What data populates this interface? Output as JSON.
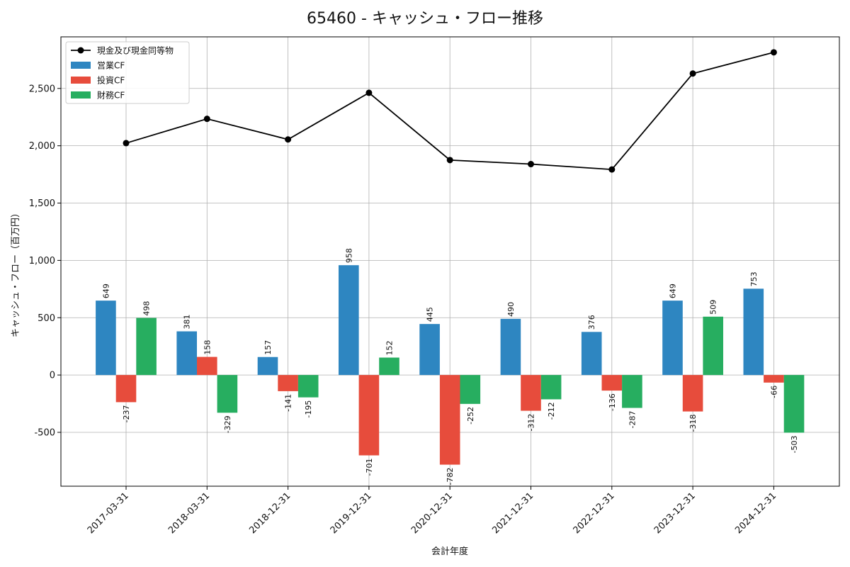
{
  "chart_data": {
    "type": "bar",
    "title": "65460 - キャッシュ・フロー推移",
    "xlabel": "会計年度",
    "ylabel": "キャッシュ・フロー（百万円）",
    "categories": [
      "2017-03-31",
      "2018-03-31",
      "2018-12-31",
      "2019-12-31",
      "2020-12-31",
      "2021-12-31",
      "2022-12-31",
      "2023-12-31",
      "2024-12-31"
    ],
    "ylim": [
      -970,
      2950
    ],
    "yticks": [
      -500,
      0,
      500,
      1000,
      1500,
      2000,
      2500
    ],
    "ytick_labels": [
      "-500",
      "0",
      "500",
      "1,000",
      "1,500",
      "2,000",
      "2,500"
    ],
    "grid": true,
    "legend_position": "top-left",
    "series": [
      {
        "name": "営業CF",
        "kind": "bar",
        "color": "#2e86c1",
        "values": [
          649,
          381,
          157,
          958,
          445,
          490,
          376,
          649,
          753
        ],
        "labels": [
          "649",
          "381",
          "157",
          "958",
          "445",
          "490",
          "376",
          "649",
          "753"
        ]
      },
      {
        "name": "投資CF",
        "kind": "bar",
        "color": "#e74c3c",
        "values": [
          -237,
          158,
          -141,
          -701,
          -782,
          -312,
          -136,
          -318,
          -66
        ],
        "labels": [
          "-237",
          "158",
          "-141",
          "-701",
          "-782",
          "-312",
          "-136",
          "-318",
          "-66"
        ]
      },
      {
        "name": "財務CF",
        "kind": "bar",
        "color": "#27ae60",
        "values": [
          498,
          -329,
          -195,
          152,
          -252,
          -212,
          -287,
          509,
          -503
        ],
        "labels": [
          "498",
          "-329",
          "-195",
          "152",
          "-252",
          "-212",
          "-287",
          "509",
          "-503"
        ]
      },
      {
        "name": "現金及び現金同等物",
        "kind": "line",
        "color": "#000000",
        "values": [
          2023,
          2235,
          2055,
          2462,
          1875,
          1840,
          1793,
          2630,
          2815
        ]
      }
    ]
  }
}
